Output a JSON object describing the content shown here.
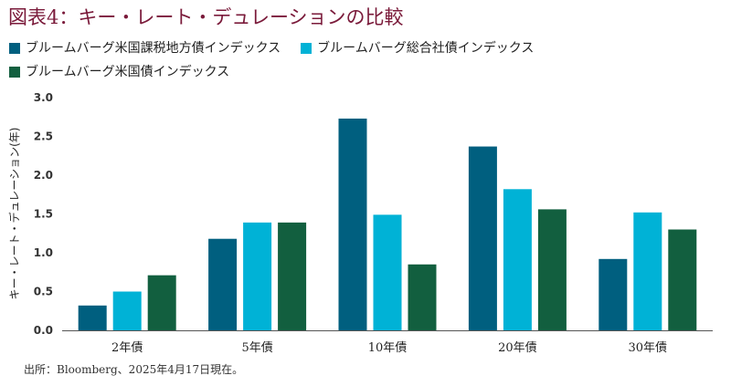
{
  "chart_data": {
    "type": "bar",
    "title": "図表4：キー・レート・デュレーションの比較",
    "ylabel": "キー・レート・デュレーション(年)",
    "xlabel": "",
    "categories": [
      "2年債",
      "5年債",
      "10年債",
      "20年債",
      "30年債"
    ],
    "ylim": [
      0,
      3.0
    ],
    "yticks": [
      "0.0",
      "0.5",
      "1.0",
      "1.5",
      "2.0",
      "2.5",
      "3.0"
    ],
    "grid": false,
    "legend_position": "top-left",
    "series": [
      {
        "name": "ブルームバーグ米国課税地方債インデックス",
        "color": "#005f7f",
        "values": [
          0.32,
          1.18,
          2.73,
          2.37,
          0.92
        ]
      },
      {
        "name": "ブルームバーグ総合社債インデックス",
        "color": "#00b2d6",
        "values": [
          0.5,
          1.39,
          1.49,
          1.82,
          1.52
        ]
      },
      {
        "name": "ブルームバーグ米国債インデックス",
        "color": "#125f3f",
        "values": [
          0.71,
          1.39,
          0.85,
          1.56,
          1.3
        ]
      }
    ]
  },
  "source": "出所：Bloomberg、2025年4月17日現在。"
}
